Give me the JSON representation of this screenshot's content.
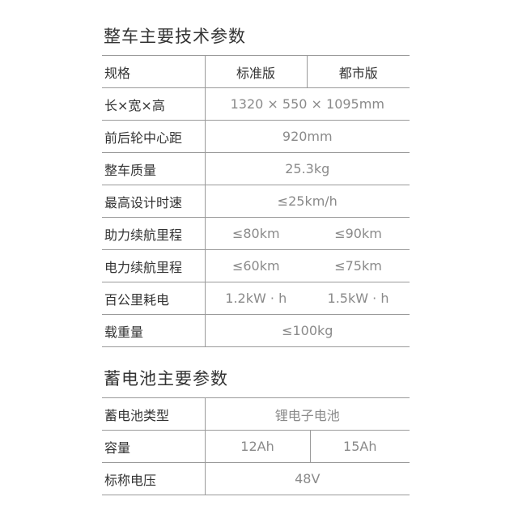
{
  "vehicle": {
    "title": "整车主要技术参数",
    "header": {
      "label": "规格",
      "col1": "标准版",
      "col2": "都市版"
    },
    "rows": [
      {
        "label": "长×宽×高",
        "value": "1320 × 550 × 1095mm"
      },
      {
        "label": "前后轮中心距",
        "value": "920mm"
      },
      {
        "label": "整车质量",
        "value": "25.3kg"
      },
      {
        "label": "最高设计时速",
        "value": "≤25km/h"
      },
      {
        "label": "助力续航里程",
        "col1": "≤80km",
        "col2": "≤90km"
      },
      {
        "label": "电力续航里程",
        "col1": "≤60km",
        "col2": "≤75km"
      },
      {
        "label": "百公里耗电",
        "col1": "1.2kW · h",
        "col2": "1.5kW · h"
      },
      {
        "label": "载重量",
        "value": "≤100kg"
      }
    ]
  },
  "battery": {
    "title": "蓄电池主要参数",
    "rows": [
      {
        "label": "蓄电池类型",
        "value": "锂电子电池"
      },
      {
        "label": "容量",
        "col1": "12Ah",
        "col2": "15Ah"
      },
      {
        "label": "标称电压",
        "value": "48V"
      }
    ]
  }
}
